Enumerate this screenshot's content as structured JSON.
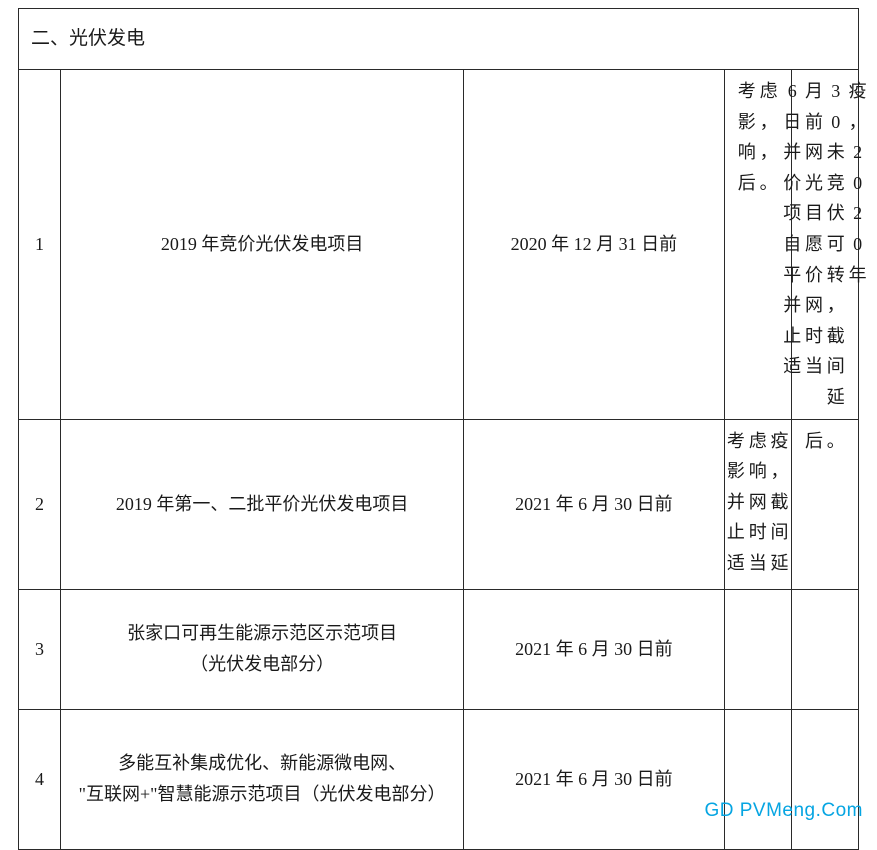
{
  "section_title": "二、光伏发电",
  "rows": [
    {
      "idx": "1",
      "project": "2019 年竞价光伏发电项目",
      "deadline": "2020 年 12 月 31 日前",
      "note_cols_a": [
        "考影响",
        "虑，"
      ],
      "note_cols_b": [
        "6日并价项自平并止适",
        "月前网光目愿价网时当",
        "30未竞伏可转，截间延",
        "疫，2020年"
      ],
      "note_cols_a2": [
        "考影并止适",
        "虑响网时当",
        "疫，截间延"
      ],
      "note_cols_b2": [
        "后。"
      ]
    },
    {
      "idx": "2",
      "project": "2019 年第一、二批平价光伏发电项目",
      "deadline": "2021 年 6 月 30 日前"
    },
    {
      "idx": "3",
      "project": "张家口可再生能源示范区示范项目\n（光伏发电部分）",
      "deadline": "2021 年 6 月 30 日前"
    },
    {
      "idx": "4",
      "project": "多能互补集成优化、新能源微电网、\n\"互联网+\"智慧能源示范项目（光伏发电部分）",
      "deadline": "2021 年 6 月 30 日前"
    }
  ],
  "row2_note_left": "考影并止适虑响网时当疫，截间延",
  "row2_note_right": "后。",
  "row1_note_left_cols": [
    "考影响后",
    "虑，，。"
  ],
  "row1_note_right_cols": [
    "6日并价项自平并止适",
    "月前网光目愿价网时当",
    "30未竞伏可转，截间延",
    "疫，2020年"
  ],
  "row2_note_left_cols": [
    "考影并止适",
    "虑响网时当",
    "疫，截间延"
  ],
  "row2_note_right_cols": [
    "后",
    "。"
  ],
  "watermark": "GD PVMeng.Com",
  "colors": {
    "border": "#2a2a2a",
    "text": "#1a1a1a",
    "watermark": "#06a5e2",
    "background": "#ffffff"
  }
}
